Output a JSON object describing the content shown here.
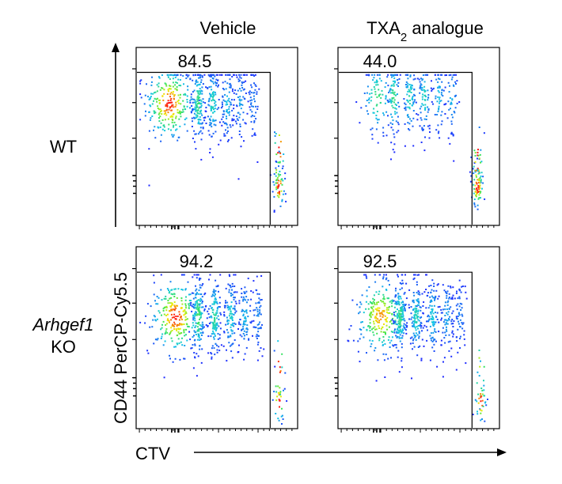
{
  "columns": [
    {
      "label": "Vehicle",
      "label_main": "",
      "label_sub": "",
      "label_tail": ""
    },
    {
      "label": "",
      "label_main": "TXA",
      "label_sub": "2",
      "label_tail": " analogue"
    }
  ],
  "rows": [
    {
      "label_line1": "WT",
      "label_line1_italic": false,
      "label_line2": ""
    },
    {
      "label_line1": "Arhgef1",
      "label_line1_italic": true,
      "label_line2": "KO"
    }
  ],
  "axes": {
    "x_label": "CTV",
    "y_label": "CD44 PerCP-Cy5.5"
  },
  "colors": {
    "density_low": "#1f2bff",
    "density_mid": "#18e0d0",
    "density_high": "#f0f000",
    "density_max": "#ff1010"
  },
  "chart_data": {
    "type": "scatter",
    "panels": [
      {
        "column": "Vehicle",
        "row": "WT",
        "gate_percent": "84.5",
        "gate_fraction": 0.845,
        "main_cloud": {
          "center": [
            0.2,
            0.69
          ],
          "intensity": 1.0
        },
        "peak_spread": 0.08,
        "undivided": {
          "x": 0.88,
          "y": 0.22
        },
        "peak_x": [
          0.2,
          0.38,
          0.47,
          0.56,
          0.64,
          0.72
        ],
        "peak_weight": [
          1.0,
          0.55,
          0.45,
          0.35,
          0.28,
          0.2
        ],
        "undivided_weight": 0.35,
        "density_level": 1.0
      },
      {
        "column": "TXA2 analogue",
        "row": "WT",
        "gate_percent": "44.0",
        "gate_fraction": 0.44,
        "main_cloud": {
          "center": [
            0.32,
            0.72
          ],
          "intensity": 0.45
        },
        "peak_spread": 0.05,
        "undivided": {
          "x": 0.86,
          "y": 0.22
        },
        "peak_x": [
          0.24,
          0.34,
          0.44,
          0.53,
          0.62,
          0.7
        ],
        "peak_weight": [
          0.35,
          0.35,
          0.3,
          0.28,
          0.22,
          0.2
        ],
        "undivided_weight": 0.45,
        "density_level": 0.55
      },
      {
        "column": "Vehicle",
        "row": "Arhgef1 KO",
        "gate_percent": "94.2",
        "gate_fraction": 0.942,
        "main_cloud": {
          "center": [
            0.24,
            0.62
          ],
          "intensity": 1.0
        },
        "peak_spread": 0.08,
        "undivided": {
          "x": 0.88,
          "y": 0.15
        },
        "peak_x": [
          0.24,
          0.38,
          0.48,
          0.58,
          0.67,
          0.75
        ],
        "peak_weight": [
          1.0,
          0.6,
          0.5,
          0.42,
          0.32,
          0.22
        ],
        "undivided_weight": 0.18,
        "density_level": 1.0
      },
      {
        "column": "TXA2 analogue",
        "row": "Arhgef1 KO",
        "gate_percent": "92.5",
        "gate_fraction": 0.925,
        "main_cloud": {
          "center": [
            0.26,
            0.62
          ],
          "intensity": 0.9
        },
        "peak_spread": 0.08,
        "undivided": {
          "x": 0.88,
          "y": 0.15
        },
        "peak_x": [
          0.26,
          0.38,
          0.48,
          0.58,
          0.67,
          0.75
        ],
        "peak_weight": [
          1.0,
          0.6,
          0.5,
          0.42,
          0.32,
          0.22
        ],
        "undivided_weight": 0.2,
        "density_level": 0.9
      }
    ]
  }
}
